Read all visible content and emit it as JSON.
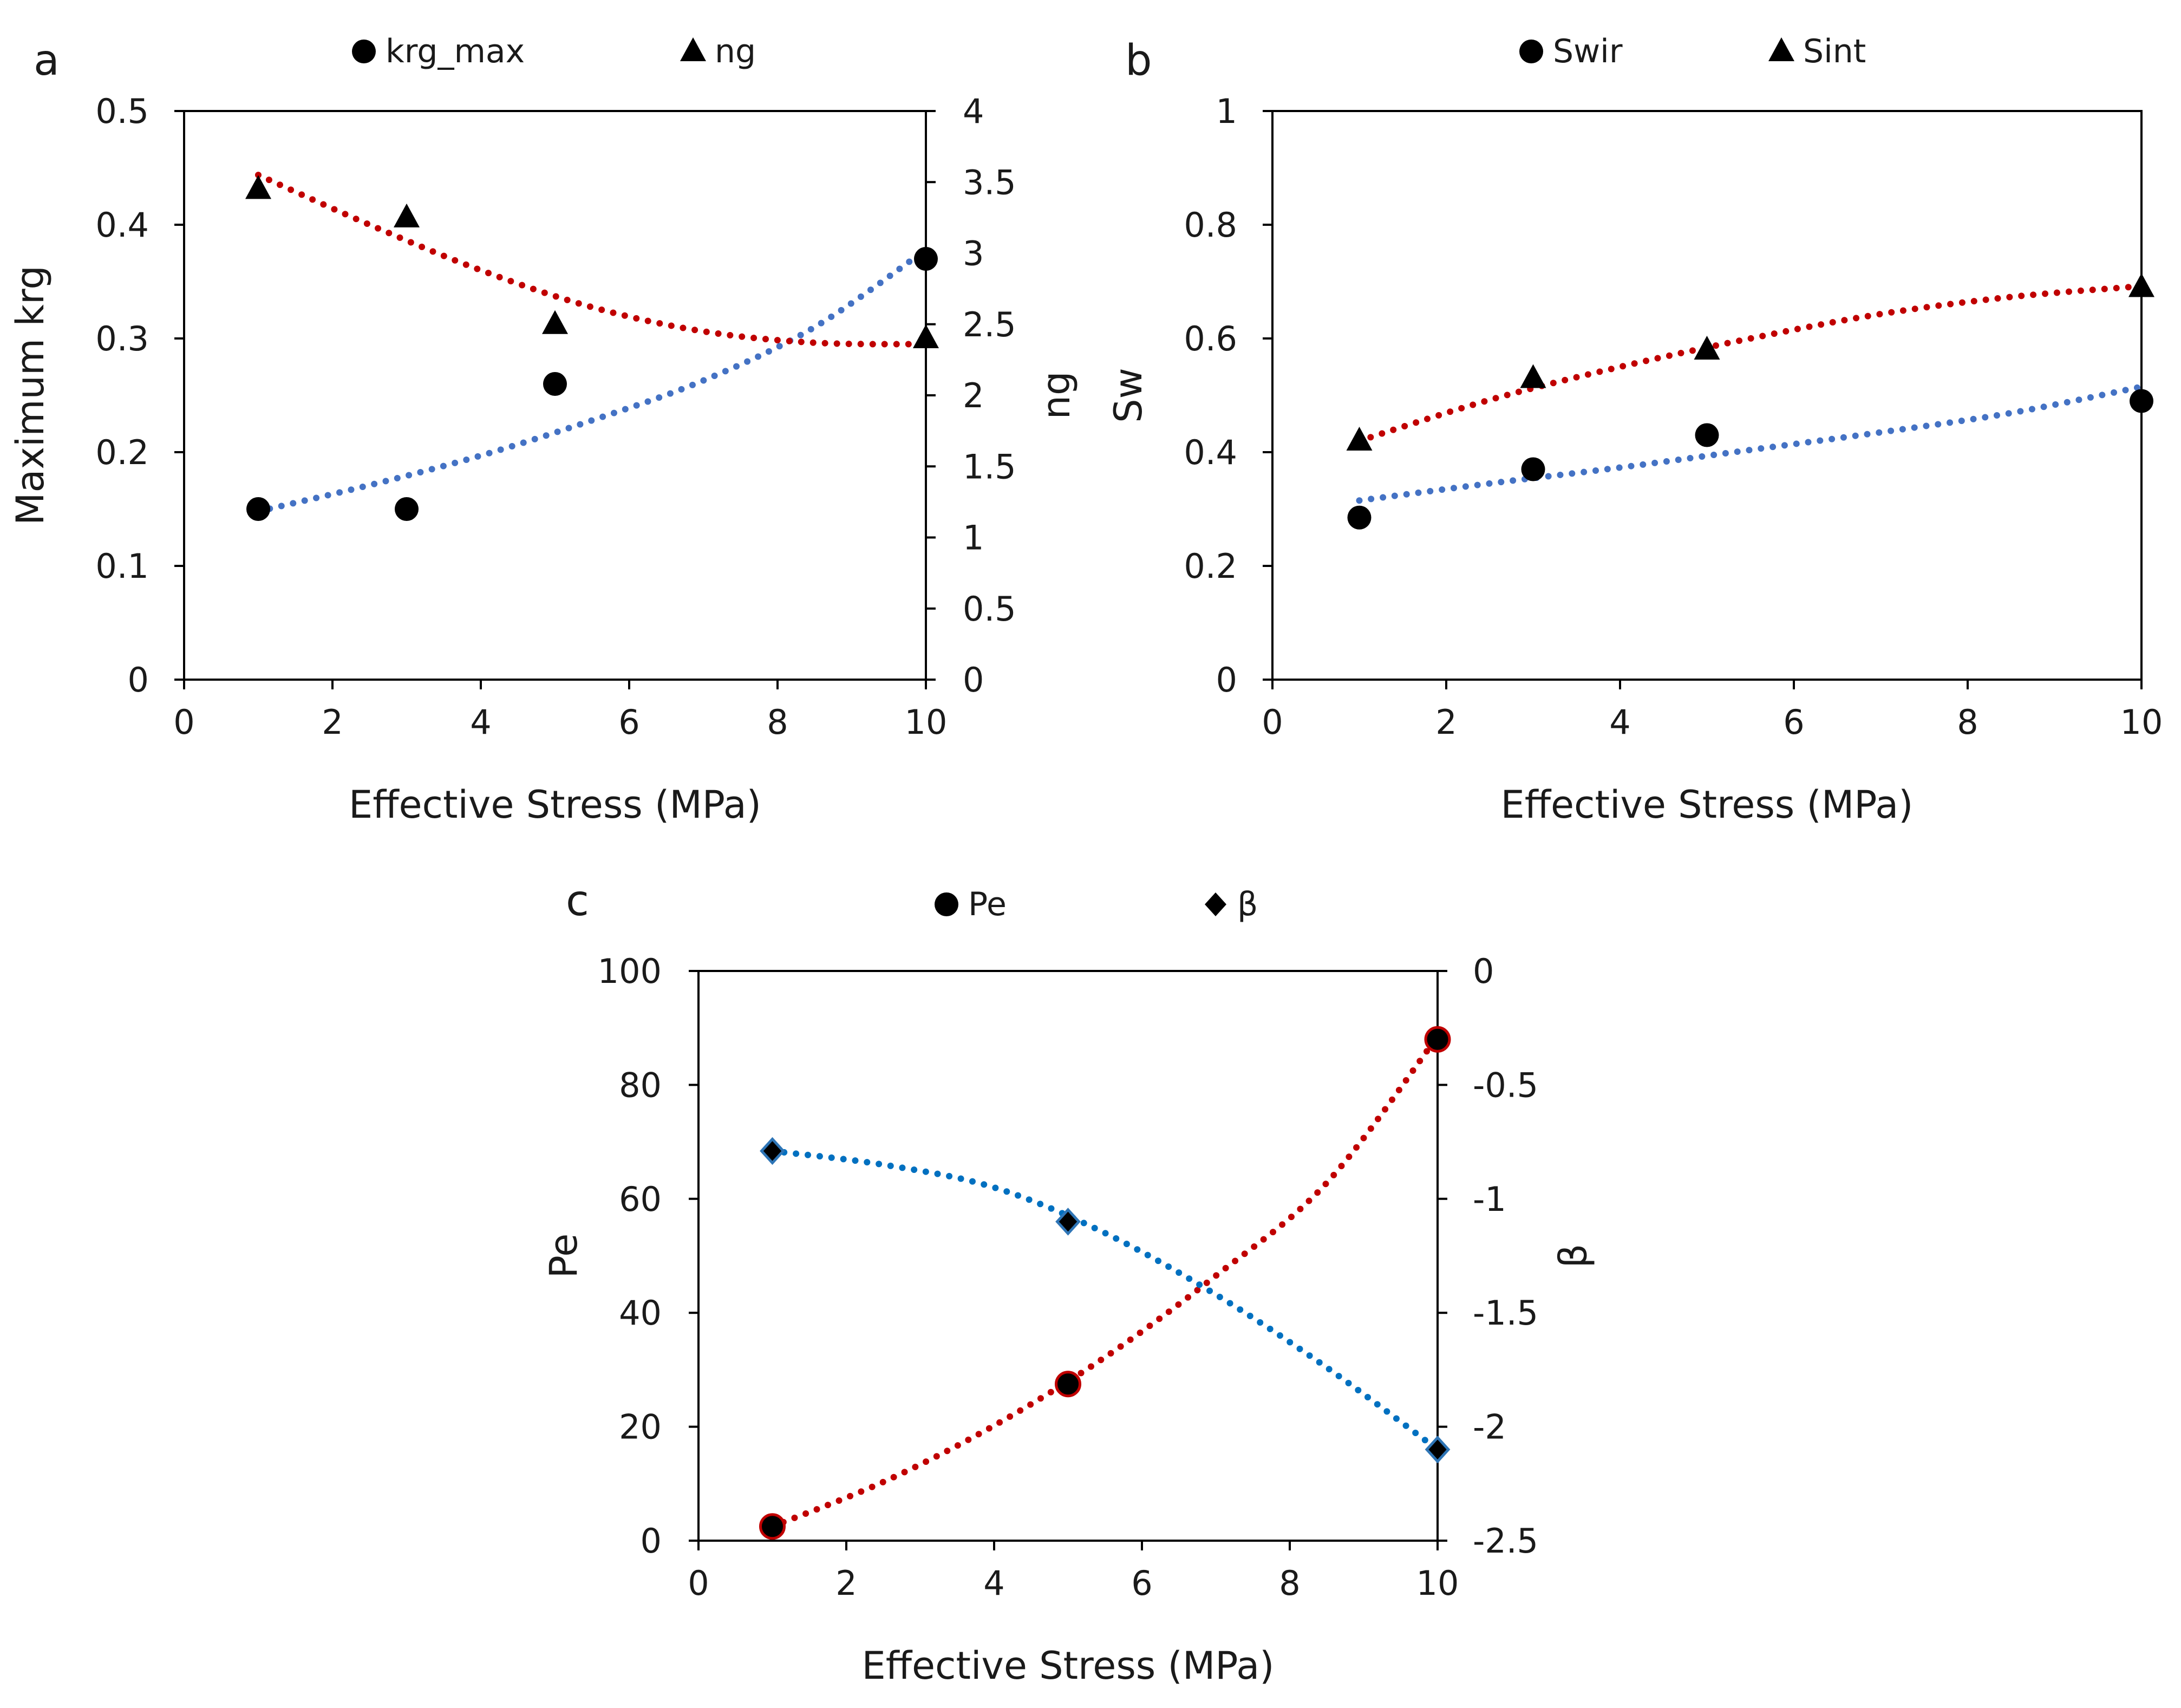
{
  "chart_data": [
    {
      "panel": "a",
      "type": "scatter",
      "xlabel": "Effective Stress (MPa)",
      "ylabel": "Maximum krg",
      "y2label": "ng",
      "xlim": [
        0,
        10
      ],
      "ylim": [
        0,
        0.5
      ],
      "y2lim": [
        0,
        4
      ],
      "xticks": [
        "0",
        "2",
        "4",
        "6",
        "8",
        "10"
      ],
      "yticks": [
        "0",
        "0.1",
        "0.2",
        "0.3",
        "0.4",
        "0.5"
      ],
      "y2ticks": [
        "0",
        "0.5",
        "1",
        "1.5",
        "2",
        "2.5",
        "3",
        "3.5",
        "4"
      ],
      "legend_position": "top",
      "series": [
        {
          "name": "krg_max",
          "marker": "circle",
          "axis": "left",
          "x": [
            1,
            3,
            5,
            10
          ],
          "y": [
            0.15,
            0.15,
            0.26,
            0.37
          ],
          "trend": {
            "color": "#4472c4",
            "x": [
              1,
              2.5,
              4,
              5.5,
              7,
              8.5,
              10
            ],
            "y": [
              0.148,
              0.171,
              0.197,
              0.228,
              0.263,
              0.31,
              0.378
            ]
          }
        },
        {
          "name": "ng",
          "marker": "triangle",
          "axis": "right",
          "x": [
            1,
            3,
            5,
            10
          ],
          "y": [
            3.45,
            3.25,
            2.5,
            2.4
          ],
          "trend": {
            "color": "#c00000",
            "x": [
              1,
              2.5,
              4,
              5.5,
              7,
              8.5,
              10
            ],
            "y": [
              3.55,
              3.2,
              2.88,
              2.62,
              2.45,
              2.37,
              2.36
            ]
          }
        }
      ]
    },
    {
      "panel": "b",
      "type": "scatter",
      "xlabel": "Effective Stress (MPa)",
      "ylabel": "Sw",
      "xlim": [
        0,
        10
      ],
      "ylim": [
        0,
        1
      ],
      "xticks": [
        "0",
        "2",
        "4",
        "6",
        "8",
        "10"
      ],
      "yticks": [
        "0",
        "0.2",
        "0.4",
        "0.6",
        "0.8",
        "1"
      ],
      "legend_position": "top",
      "series": [
        {
          "name": "Swir",
          "marker": "circle",
          "axis": "left",
          "x": [
            1,
            3,
            5,
            10
          ],
          "y": [
            0.285,
            0.37,
            0.43,
            0.49
          ],
          "trend": {
            "color": "#4472c4",
            "x": [
              1,
              2.5,
              4,
              5.5,
              7,
              8.5,
              10
            ],
            "y": [
              0.315,
              0.345,
              0.373,
              0.404,
              0.435,
              0.469,
              0.515
            ]
          }
        },
        {
          "name": "Sint",
          "marker": "triangle",
          "axis": "left",
          "x": [
            1,
            3,
            5,
            10
          ],
          "y": [
            0.42,
            0.53,
            0.58,
            0.69
          ],
          "trend": {
            "color": "#c00000",
            "x": [
              1,
              2.5,
              4,
              5.5,
              7,
              8.5,
              10
            ],
            "y": [
              0.42,
              0.492,
              0.55,
              0.6,
              0.643,
              0.673,
              0.692
            ]
          }
        }
      ]
    },
    {
      "panel": "c",
      "type": "scatter",
      "xlabel": "Effective Stress (MPa)",
      "ylabel": "Pe",
      "y2label": "β",
      "xlim": [
        0,
        10
      ],
      "ylim": [
        0,
        100
      ],
      "y2lim": [
        -2.5,
        0
      ],
      "xticks": [
        "0",
        "2",
        "4",
        "6",
        "8",
        "10"
      ],
      "yticks": [
        "0",
        "20",
        "40",
        "60",
        "80",
        "100"
      ],
      "y2ticks": [
        "-2.5",
        "-2",
        "-1.5",
        "-1",
        "-0.5",
        "0"
      ],
      "legend_position": "top",
      "series": [
        {
          "name": "Pe",
          "marker": "circle",
          "axis": "left",
          "x": [
            1,
            5,
            10
          ],
          "y": [
            2.5,
            27.5,
            88
          ],
          "trend": {
            "color": "#c00000",
            "x": [
              1,
              2.5,
              4,
              5.5,
              7,
              8.5,
              10
            ],
            "y": [
              2.5,
              10.3,
              20.2,
              32.2,
              46.5,
              62.8,
              88.5
            ]
          }
        },
        {
          "name": "β",
          "marker": "diamond",
          "axis": "right",
          "x": [
            1,
            5,
            10
          ],
          "y": [
            -0.79,
            -1.1,
            -2.1
          ],
          "trend": {
            "color": "#0070c0",
            "x": [
              1,
              2.5,
              4,
              5.5,
              7,
              8.5,
              10
            ],
            "y": [
              -0.79,
              -0.85,
              -0.95,
              -1.15,
              -1.42,
              -1.74,
              -2.1
            ]
          }
        }
      ]
    }
  ]
}
